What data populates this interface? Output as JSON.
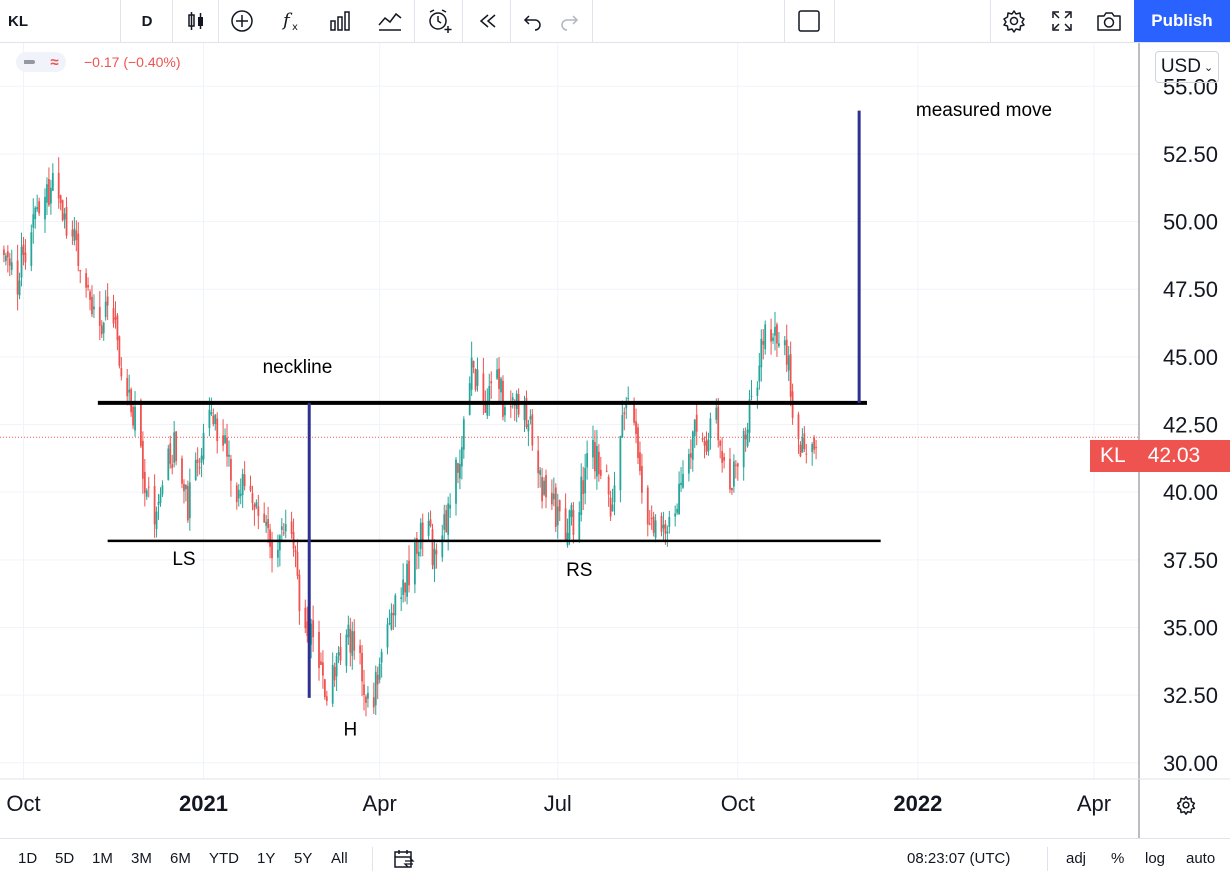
{
  "toolbar": {
    "symbol": "KL",
    "interval": "D",
    "publish_label": "Publish",
    "icons": [
      "candles-icon",
      "add-indicator-icon",
      "fx-icon",
      "bar-chart-icon",
      "compare-icon",
      "alert-icon",
      "replay-icon",
      "undo-icon",
      "redo-icon",
      "layout-icon",
      "settings-icon",
      "fullscreen-icon",
      "camera-icon"
    ]
  },
  "legend": {
    "change": "−0.17 (−0.40%)"
  },
  "axis": {
    "currency": "USD"
  },
  "price_label": {
    "symbol": "KL",
    "value": "42.03"
  },
  "bottom": {
    "ranges": [
      "1D",
      "5D",
      "1M",
      "3M",
      "6M",
      "YTD",
      "1Y",
      "5Y",
      "All"
    ],
    "time": "08:23:07 (UTC)",
    "opts": [
      "adj",
      "%",
      "log",
      "auto"
    ]
  },
  "colors": {
    "up": "#26a69a",
    "down": "#ef5350",
    "annotation": "#2e3192",
    "publish": "#2962ff"
  },
  "chart_data": {
    "type": "candlestick",
    "y_ticks": [
      "55.00",
      "52.50",
      "50.00",
      "47.50",
      "45.00",
      "42.50",
      "40.00",
      "37.50",
      "35.00",
      "32.50",
      "30.00"
    ],
    "ylim": [
      29.4,
      56.6
    ],
    "x_ticks": [
      {
        "label": "Oct",
        "date": "2020-10-01"
      },
      {
        "label": "2021",
        "date": "2021-01-01",
        "bold": true
      },
      {
        "label": "Apr",
        "date": "2021-04-01"
      },
      {
        "label": "Jul",
        "date": "2021-07-01"
      },
      {
        "label": "Oct",
        "date": "2021-10-01"
      },
      {
        "label": "2022",
        "date": "2022-01-01",
        "bold": true
      },
      {
        "label": "Apr",
        "date": "2022-04-01"
      }
    ],
    "xlim": [
      "2020-09-19",
      "2022-04-24"
    ],
    "series_path": [
      [
        "2020-09-19",
        49.0
      ],
      [
        "2020-09-28",
        48.0
      ],
      [
        "2020-10-09",
        50.5
      ],
      [
        "2020-10-16",
        51.5
      ],
      [
        "2020-10-25",
        49.5
      ],
      [
        "2020-11-01",
        48.0
      ],
      [
        "2020-11-08",
        46.0
      ],
      [
        "2020-11-14",
        47.5
      ],
      [
        "2020-11-20",
        44.5
      ],
      [
        "2020-11-26",
        43.0
      ],
      [
        "2020-12-02",
        40.5
      ],
      [
        "2020-12-06",
        38.8
      ],
      [
        "2020-12-12",
        40.8
      ],
      [
        "2020-12-18",
        41.8
      ],
      [
        "2020-12-24",
        39.5
      ],
      [
        "2020-12-30",
        41.0
      ],
      [
        "2021-01-04",
        43.5
      ],
      [
        "2021-01-10",
        42.0
      ],
      [
        "2021-01-16",
        40.5
      ],
      [
        "2021-01-24",
        39.8
      ],
      [
        "2021-02-01",
        38.6
      ],
      [
        "2021-02-07",
        38.0
      ],
      [
        "2021-02-13",
        39.5
      ],
      [
        "2021-02-19",
        36.0
      ],
      [
        "2021-02-25",
        34.5
      ],
      [
        "2021-03-02",
        33.0
      ],
      [
        "2021-03-06",
        32.4
      ],
      [
        "2021-03-12",
        34.0
      ],
      [
        "2021-03-18",
        34.8
      ],
      [
        "2021-03-24",
        33.0
      ],
      [
        "2021-03-29",
        32.2
      ],
      [
        "2021-04-04",
        35.0
      ],
      [
        "2021-04-10",
        36.2
      ],
      [
        "2021-04-18",
        37.5
      ],
      [
        "2021-04-24",
        39.0
      ],
      [
        "2021-04-30",
        37.5
      ],
      [
        "2021-05-06",
        39.5
      ],
      [
        "2021-05-12",
        41.5
      ],
      [
        "2021-05-18",
        44.5
      ],
      [
        "2021-05-24",
        43.5
      ],
      [
        "2021-05-30",
        44.2
      ],
      [
        "2021-06-05",
        42.8
      ],
      [
        "2021-06-12",
        43.5
      ],
      [
        "2021-06-18",
        42.2
      ],
      [
        "2021-06-24",
        40.0
      ],
      [
        "2021-06-30",
        39.2
      ],
      [
        "2021-07-05",
        38.2
      ],
      [
        "2021-07-11",
        39.5
      ],
      [
        "2021-07-17",
        41.5
      ],
      [
        "2021-07-23",
        41.0
      ],
      [
        "2021-07-29",
        39.5
      ],
      [
        "2021-08-04",
        43.5
      ],
      [
        "2021-08-09",
        42.0
      ],
      [
        "2021-08-15",
        39.5
      ],
      [
        "2021-08-22",
        38.0
      ],
      [
        "2021-08-28",
        38.5
      ],
      [
        "2021-09-03",
        40.5
      ],
      [
        "2021-09-09",
        42.0
      ],
      [
        "2021-09-14",
        41.5
      ],
      [
        "2021-09-20",
        43.0
      ],
      [
        "2021-09-26",
        40.0
      ],
      [
        "2021-10-02",
        41.5
      ],
      [
        "2021-10-08",
        43.0
      ],
      [
        "2021-10-14",
        45.5
      ],
      [
        "2021-10-18",
        46.2
      ],
      [
        "2021-10-24",
        45.5
      ],
      [
        "2021-10-28",
        44.0
      ],
      [
        "2021-11-01",
        41.5
      ],
      [
        "2021-11-05",
        41.8
      ],
      [
        "2021-11-10",
        42.2
      ]
    ],
    "annotations": {
      "lines": [
        {
          "name": "neckline",
          "points": [
            [
              "2020-11-08",
              43.3
            ],
            [
              "2021-12-06",
              43.3
            ]
          ],
          "color": "#000000",
          "width": 4
        },
        {
          "name": "support",
          "points": [
            [
              "2020-11-13",
              38.2
            ],
            [
              "2021-12-13",
              38.2
            ]
          ],
          "color": "#000000",
          "width": 2.5
        },
        {
          "name": "head-drop",
          "points": [
            [
              "2021-02-24",
              43.3
            ],
            [
              "2021-02-24",
              32.4
            ]
          ],
          "color": "#2e3192",
          "width": 3
        },
        {
          "name": "measured-move",
          "points": [
            [
              "2021-12-02",
              43.3
            ],
            [
              "2021-12-02",
              54.1
            ]
          ],
          "color": "#2e3192",
          "width": 3
        }
      ],
      "labels": [
        {
          "text": "neckline",
          "date": "2021-02-18",
          "y": 44.4
        },
        {
          "text": "LS",
          "date": "2020-12-22",
          "y": 37.3
        },
        {
          "text": "H",
          "date": "2021-03-17",
          "y": 31.0
        },
        {
          "text": "RS",
          "date": "2021-07-12",
          "y": 36.9
        },
        {
          "text": "measured move",
          "date": "2021-12-31",
          "y": 53.9
        }
      ]
    },
    "last_price": 42.03,
    "grid": true
  }
}
